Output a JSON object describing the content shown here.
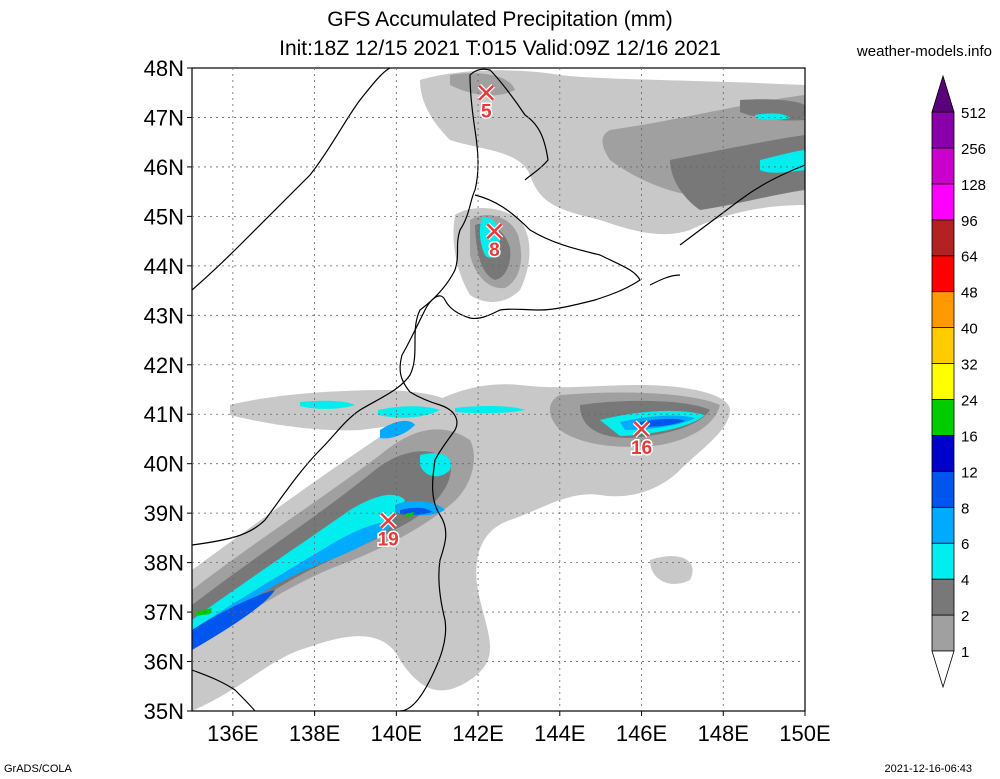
{
  "title": "GFS Accumulated Precipitation (mm)",
  "subtitle": "Init:18Z 12/15 2021 T:015 Valid:09Z 12/16 2021",
  "website": "weather-models.info",
  "footer_left": "GrADS/COLA",
  "footer_right": "2021-12-16-06:43",
  "map": {
    "lat_labels": [
      "48N",
      "47N",
      "46N",
      "45N",
      "44N",
      "43N",
      "42N",
      "41N",
      "40N",
      "39N",
      "38N",
      "37N",
      "36N",
      "35N"
    ],
    "lon_labels": [
      "136E",
      "138E",
      "140E",
      "142E",
      "144E",
      "146E",
      "148E",
      "150E"
    ],
    "land_color": "#ffffff",
    "coast_color": "#000000",
    "markers": [
      {
        "label": "5",
        "lon": 142.2,
        "lat": 47.5,
        "color": "#e83a3a"
      },
      {
        "label": "8",
        "lon": 142.4,
        "lat": 44.7,
        "color": "#e83a3a"
      },
      {
        "label": "16",
        "lon": 146.0,
        "lat": 40.7,
        "color": "#e83a3a"
      },
      {
        "label": "19",
        "lon": 139.8,
        "lat": 38.85,
        "color": "#e83a3a"
      }
    ]
  },
  "legend": {
    "levels": [
      "1",
      "2",
      "4",
      "6",
      "8",
      "12",
      "16",
      "24",
      "32",
      "40",
      "48",
      "64",
      "96",
      "128",
      "256",
      "512"
    ],
    "colors": [
      "#c8c8c8",
      "#a0a0a0",
      "#787878",
      "#00eeee",
      "#00aaff",
      "#0055ee",
      "#0000cc",
      "#00cc00",
      "#ffff00",
      "#ffcc00",
      "#ff9900",
      "#ff0000",
      "#b22222",
      "#ff00ff",
      "#cc00cc",
      "#8800aa",
      "#5a007a"
    ]
  }
}
